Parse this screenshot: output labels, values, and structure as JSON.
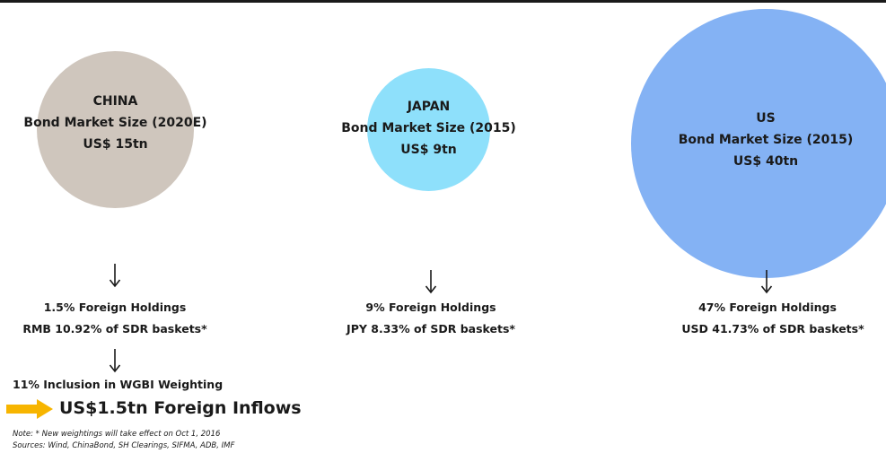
{
  "chart_data": {
    "type": "bubble",
    "title": "",
    "series": [
      {
        "country": "CHINA",
        "label": "Bond Market Size (2020E)",
        "size_text": "US$ 15tn",
        "value": 15,
        "color": "#cfc6bd",
        "foreign_holdings": "1.5% Foreign Holdings",
        "sdr_weight": "RMB 10.92% of SDR baskets*"
      },
      {
        "country": "JAPAN",
        "label": "Bond Market Size (2015)",
        "size_text": "US$ 9tn",
        "value": 9,
        "color": "#8ee0fb",
        "foreign_holdings": "9% Foreign Holdings",
        "sdr_weight": "JPY 8.33% of SDR baskets*"
      },
      {
        "country": "US",
        "label": "Bond Market Size (2015)",
        "size_text": "US$ 40tn",
        "value": 40,
        "color": "#84b2f4",
        "foreign_holdings": "47% Foreign Holdings",
        "sdr_weight": "USD 41.73% of SDR baskets*"
      }
    ],
    "wgbi": "11% Inclusion in WGBI Weighting",
    "inflows": "US$1.5tn Foreign Inflows",
    "note": "Note: * New weightings will take effect on Oct 1, 2016",
    "sources": "Sources: Wind, ChinaBond, SH Clearings, SIFMA, ADB, IMF"
  },
  "colors": {
    "arrow_fill": "#f7b500",
    "text": "#1a1a1a"
  },
  "icons": {
    "down_arrow": "down-arrow-icon",
    "inflow_arrow": "right-arrow-icon"
  }
}
